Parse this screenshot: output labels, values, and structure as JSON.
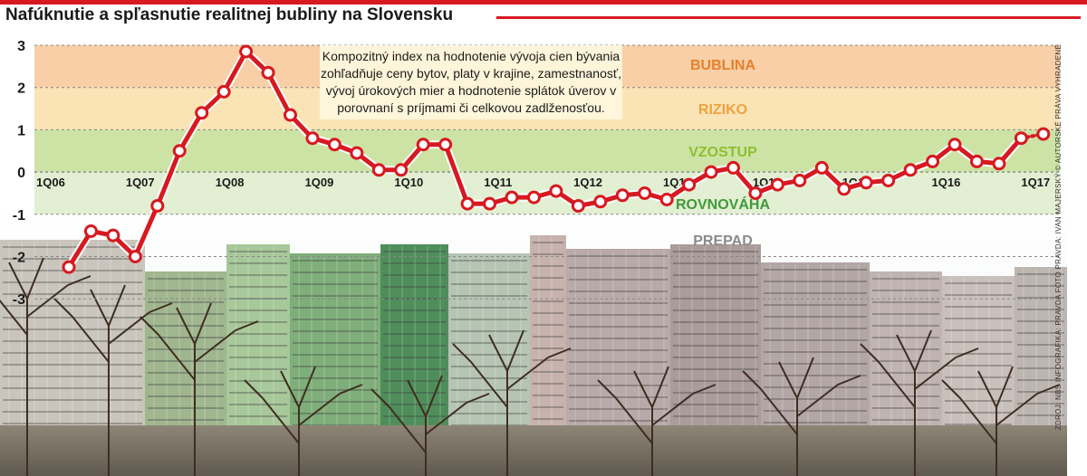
{
  "title": "Nafúknutie a spľasnutie realitnej bubliny na Slovensku",
  "note": "Kompozitný index na hodnotenie vývoja cien bývania zohľadňuje ceny bytov, platy v krajine, zamestnanosť, vývoj úrokových mier a hodnotenie splátok úverov v porovnaní s príjmami či celkovou zadlženosťou.",
  "credit": "ZDROJ: NBS INFOGRAFIKA: PRAVDA FOTO PRAVDA: IVAN MAJERSKÝ © AUTORSKÉ PRÁVA VYHRADENÉ",
  "colors": {
    "accent": "#d71920",
    "bublina": "#f8cfa6",
    "riziko": "#fae4b6",
    "vzostup": "#cde3a6",
    "rovnovaha": "#e3efd2",
    "line": "#d71920"
  },
  "chart_data": {
    "type": "line",
    "title": "Nafúknutie a spľasnutie realitnej bubliny na Slovensku",
    "ylim": [
      -3,
      3
    ],
    "yticks": [
      "3",
      "2",
      "1",
      "0",
      "-1",
      "-2",
      "-3"
    ],
    "x_labels": [
      "1Q06",
      "1Q07",
      "1Q08",
      "1Q09",
      "1Q10",
      "1Q11",
      "1Q12",
      "1Q13",
      "1Q14",
      "1Q15",
      "1Q16",
      "1Q17"
    ],
    "x_start": "1Q06",
    "zones": [
      {
        "label": "BUBLINA",
        "from": 2,
        "to": 3,
        "color": "#f8cfa6",
        "text_color": "#e97e2b"
      },
      {
        "label": "RIZIKO",
        "from": 1,
        "to": 2,
        "color": "#fae4b6",
        "text_color": "#f0a23d"
      },
      {
        "label": "VZOSTUP",
        "from": 0,
        "to": 1,
        "color": "#cde3a6",
        "text_color": "#8fbf2e"
      },
      {
        "label": "ROVNOVÁHA",
        "from": -1,
        "to": 0,
        "color": "#e3efd2",
        "text_color": "#3f9a3a"
      },
      {
        "label": "PREPAD",
        "from": -3,
        "to": -1,
        "color": "none",
        "text_color": "#8a8a8a"
      }
    ],
    "grid": true,
    "series": [
      {
        "values": [
          -2.25,
          -1.4,
          -1.5,
          -2.0,
          -0.8,
          0.5,
          1.4,
          1.9,
          2.85,
          2.35,
          1.35,
          0.8,
          0.65,
          0.45,
          0.05,
          0.05,
          0.65,
          0.65,
          -0.75,
          -0.75,
          -0.6,
          -0.6,
          -0.45,
          -0.8,
          -0.7,
          -0.55,
          -0.5,
          -0.65,
          -0.3,
          0.0,
          0.1,
          -0.5,
          -0.3,
          -0.2,
          0.1,
          -0.4,
          -0.25,
          -0.2,
          0.05,
          0.25,
          0.65,
          0.25,
          0.2,
          0.8,
          0.9
        ],
        "estimate_last": true
      }
    ]
  }
}
